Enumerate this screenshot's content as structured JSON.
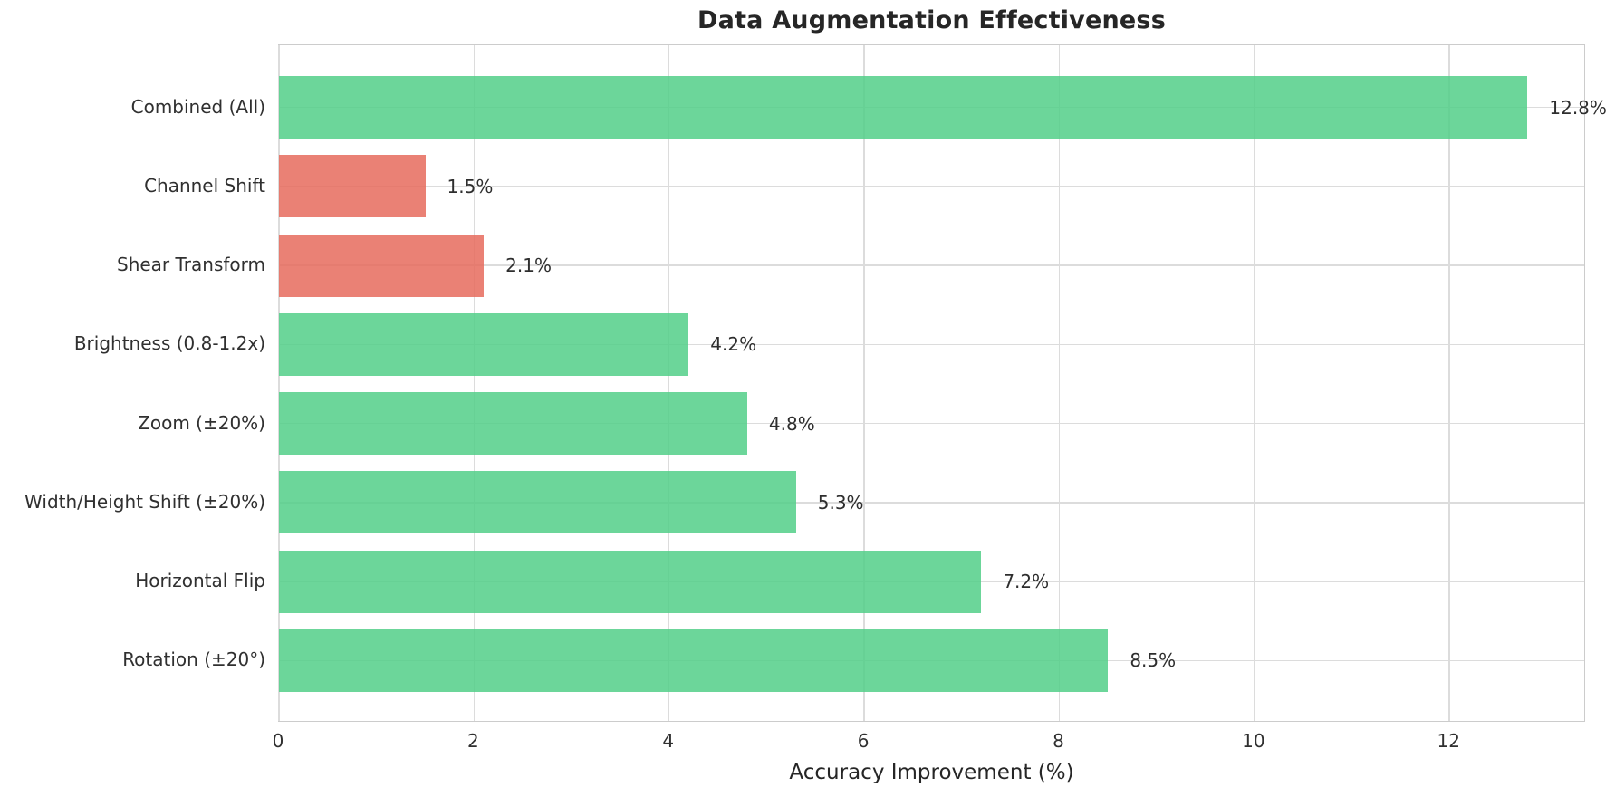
{
  "title": "Data Augmentation Effectiveness",
  "x_axis": {
    "label": "Accuracy Improvement (%)"
  },
  "colors": {
    "positive_bar": "#52cf88",
    "negative_bar": "#e66b5d",
    "bar_opacity": 0.85,
    "grid_line": "#dcdcdc",
    "plot_border": "#cccccc",
    "title_text": "#262626",
    "tick_text": "#303030"
  },
  "chart_data": {
    "type": "bar",
    "orientation": "horizontal",
    "title": "Data Augmentation Effectiveness",
    "xlabel": "Accuracy Improvement (%)",
    "ylabel": "",
    "categories": [
      "Combined (All)",
      "Channel Shift",
      "Shear Transform",
      "Brightness (0.8-1.2x)",
      "Zoom (±20%)",
      "Width/Height Shift (±20%)",
      "Horizontal Flip",
      "Rotation (±20°)"
    ],
    "values": [
      12.8,
      1.5,
      2.1,
      4.2,
      4.8,
      5.3,
      7.2,
      8.5
    ],
    "value_labels": [
      "12.8%",
      "1.5%",
      "2.1%",
      "4.2%",
      "4.8%",
      "5.3%",
      "7.2%",
      "8.5%"
    ],
    "bar_sentiment": [
      "positive",
      "negative",
      "negative",
      "positive",
      "positive",
      "positive",
      "positive",
      "positive"
    ],
    "xticks": [
      0,
      2,
      4,
      6,
      8,
      10,
      12
    ],
    "xlim": [
      0,
      13.4
    ],
    "grid": true,
    "legend": false
  }
}
